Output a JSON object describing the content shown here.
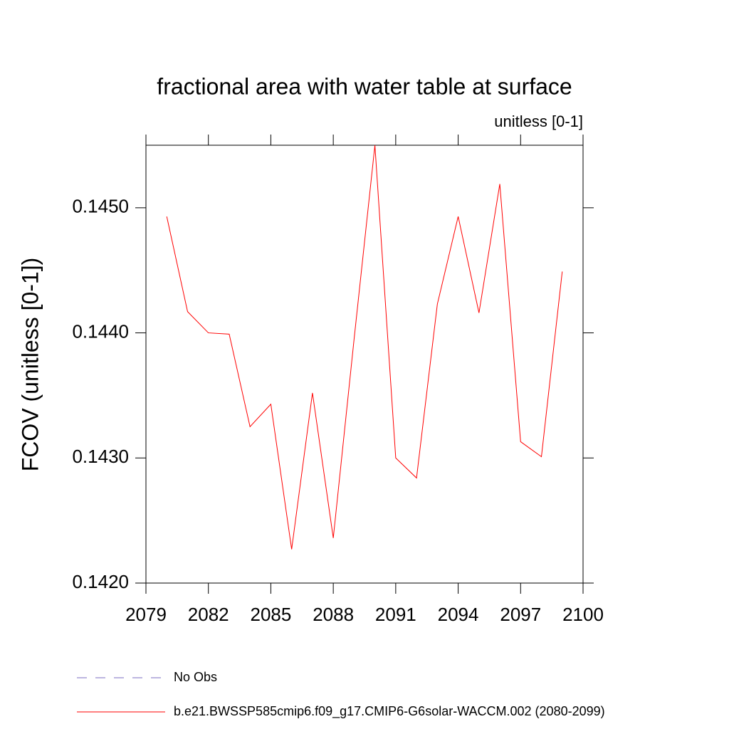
{
  "chart_data": {
    "type": "line",
    "title": "fractional area with water table at surface",
    "subtitle": "unitless [0-1]",
    "y_label": "FCOV  (unitless [0-1])",
    "x": [
      2080,
      2081,
      2082,
      2083,
      2084,
      2085,
      2086,
      2087,
      2088,
      2089,
      2090,
      2091,
      2092,
      2093,
      2094,
      2095,
      2096,
      2097,
      2098,
      2099
    ],
    "series": [
      {
        "name": "b.e21.BWSSP585cmip6.f09_g17.CMIP6-G6solar-WACCM.002 (2080-2099)",
        "color": "#ff0000",
        "values": [
          0.14493,
          0.14417,
          0.144,
          0.14399,
          0.14325,
          0.14343,
          0.14227,
          0.14352,
          0.14236,
          0.14395,
          0.1455,
          0.143,
          0.14284,
          0.14423,
          0.14493,
          0.14416,
          0.14519,
          0.14313,
          0.14301,
          0.14449
        ]
      }
    ],
    "obs_legend": {
      "name": "No Obs",
      "color": "#7b6cc0",
      "dashed": true
    },
    "xlim": [
      2079,
      2100
    ],
    "xticks": [
      2079,
      2082,
      2085,
      2088,
      2091,
      2094,
      2097,
      2100
    ],
    "ylim": [
      0.142,
      0.1455
    ],
    "yticks": [
      {
        "value": 0.142,
        "label": "0.1420"
      },
      {
        "value": 0.143,
        "label": "0.1430"
      },
      {
        "value": 0.144,
        "label": "0.1440"
      },
      {
        "value": 0.145,
        "label": "0.1450"
      }
    ],
    "grid": false
  }
}
